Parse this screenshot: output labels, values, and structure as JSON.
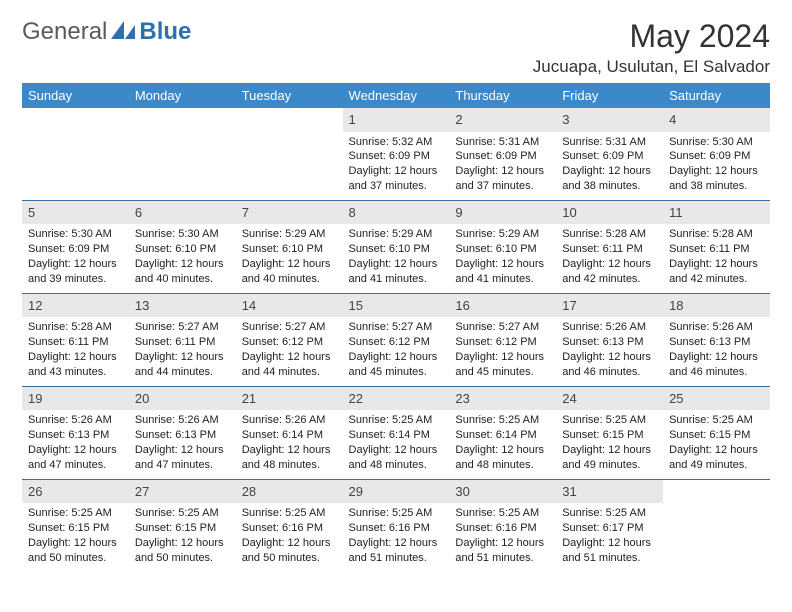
{
  "brand": {
    "part1": "General",
    "part2": "Blue"
  },
  "title": "May 2024",
  "location": "Jucuapa, Usulutan, El Salvador",
  "header_bg": "#3b89c9",
  "rule_color": "#3b6fa0",
  "daynum_bg": "#e8e8e8",
  "weekdays": [
    "Sunday",
    "Monday",
    "Tuesday",
    "Wednesday",
    "Thursday",
    "Friday",
    "Saturday"
  ],
  "weeks": [
    [
      {
        "empty": true
      },
      {
        "empty": true
      },
      {
        "empty": true
      },
      {
        "day": "1",
        "sunrise": "Sunrise: 5:32 AM",
        "sunset": "Sunset: 6:09 PM",
        "d1": "Daylight: 12 hours",
        "d2": "and 37 minutes."
      },
      {
        "day": "2",
        "sunrise": "Sunrise: 5:31 AM",
        "sunset": "Sunset: 6:09 PM",
        "d1": "Daylight: 12 hours",
        "d2": "and 37 minutes."
      },
      {
        "day": "3",
        "sunrise": "Sunrise: 5:31 AM",
        "sunset": "Sunset: 6:09 PM",
        "d1": "Daylight: 12 hours",
        "d2": "and 38 minutes."
      },
      {
        "day": "4",
        "sunrise": "Sunrise: 5:30 AM",
        "sunset": "Sunset: 6:09 PM",
        "d1": "Daylight: 12 hours",
        "d2": "and 38 minutes."
      }
    ],
    [
      {
        "day": "5",
        "sunrise": "Sunrise: 5:30 AM",
        "sunset": "Sunset: 6:09 PM",
        "d1": "Daylight: 12 hours",
        "d2": "and 39 minutes."
      },
      {
        "day": "6",
        "sunrise": "Sunrise: 5:30 AM",
        "sunset": "Sunset: 6:10 PM",
        "d1": "Daylight: 12 hours",
        "d2": "and 40 minutes."
      },
      {
        "day": "7",
        "sunrise": "Sunrise: 5:29 AM",
        "sunset": "Sunset: 6:10 PM",
        "d1": "Daylight: 12 hours",
        "d2": "and 40 minutes."
      },
      {
        "day": "8",
        "sunrise": "Sunrise: 5:29 AM",
        "sunset": "Sunset: 6:10 PM",
        "d1": "Daylight: 12 hours",
        "d2": "and 41 minutes."
      },
      {
        "day": "9",
        "sunrise": "Sunrise: 5:29 AM",
        "sunset": "Sunset: 6:10 PM",
        "d1": "Daylight: 12 hours",
        "d2": "and 41 minutes."
      },
      {
        "day": "10",
        "sunrise": "Sunrise: 5:28 AM",
        "sunset": "Sunset: 6:11 PM",
        "d1": "Daylight: 12 hours",
        "d2": "and 42 minutes."
      },
      {
        "day": "11",
        "sunrise": "Sunrise: 5:28 AM",
        "sunset": "Sunset: 6:11 PM",
        "d1": "Daylight: 12 hours",
        "d2": "and 42 minutes."
      }
    ],
    [
      {
        "day": "12",
        "sunrise": "Sunrise: 5:28 AM",
        "sunset": "Sunset: 6:11 PM",
        "d1": "Daylight: 12 hours",
        "d2": "and 43 minutes."
      },
      {
        "day": "13",
        "sunrise": "Sunrise: 5:27 AM",
        "sunset": "Sunset: 6:11 PM",
        "d1": "Daylight: 12 hours",
        "d2": "and 44 minutes."
      },
      {
        "day": "14",
        "sunrise": "Sunrise: 5:27 AM",
        "sunset": "Sunset: 6:12 PM",
        "d1": "Daylight: 12 hours",
        "d2": "and 44 minutes."
      },
      {
        "day": "15",
        "sunrise": "Sunrise: 5:27 AM",
        "sunset": "Sunset: 6:12 PM",
        "d1": "Daylight: 12 hours",
        "d2": "and 45 minutes."
      },
      {
        "day": "16",
        "sunrise": "Sunrise: 5:27 AM",
        "sunset": "Sunset: 6:12 PM",
        "d1": "Daylight: 12 hours",
        "d2": "and 45 minutes."
      },
      {
        "day": "17",
        "sunrise": "Sunrise: 5:26 AM",
        "sunset": "Sunset: 6:13 PM",
        "d1": "Daylight: 12 hours",
        "d2": "and 46 minutes."
      },
      {
        "day": "18",
        "sunrise": "Sunrise: 5:26 AM",
        "sunset": "Sunset: 6:13 PM",
        "d1": "Daylight: 12 hours",
        "d2": "and 46 minutes."
      }
    ],
    [
      {
        "day": "19",
        "sunrise": "Sunrise: 5:26 AM",
        "sunset": "Sunset: 6:13 PM",
        "d1": "Daylight: 12 hours",
        "d2": "and 47 minutes."
      },
      {
        "day": "20",
        "sunrise": "Sunrise: 5:26 AM",
        "sunset": "Sunset: 6:13 PM",
        "d1": "Daylight: 12 hours",
        "d2": "and 47 minutes."
      },
      {
        "day": "21",
        "sunrise": "Sunrise: 5:26 AM",
        "sunset": "Sunset: 6:14 PM",
        "d1": "Daylight: 12 hours",
        "d2": "and 48 minutes."
      },
      {
        "day": "22",
        "sunrise": "Sunrise: 5:25 AM",
        "sunset": "Sunset: 6:14 PM",
        "d1": "Daylight: 12 hours",
        "d2": "and 48 minutes."
      },
      {
        "day": "23",
        "sunrise": "Sunrise: 5:25 AM",
        "sunset": "Sunset: 6:14 PM",
        "d1": "Daylight: 12 hours",
        "d2": "and 48 minutes."
      },
      {
        "day": "24",
        "sunrise": "Sunrise: 5:25 AM",
        "sunset": "Sunset: 6:15 PM",
        "d1": "Daylight: 12 hours",
        "d2": "and 49 minutes."
      },
      {
        "day": "25",
        "sunrise": "Sunrise: 5:25 AM",
        "sunset": "Sunset: 6:15 PM",
        "d1": "Daylight: 12 hours",
        "d2": "and 49 minutes."
      }
    ],
    [
      {
        "day": "26",
        "sunrise": "Sunrise: 5:25 AM",
        "sunset": "Sunset: 6:15 PM",
        "d1": "Daylight: 12 hours",
        "d2": "and 50 minutes."
      },
      {
        "day": "27",
        "sunrise": "Sunrise: 5:25 AM",
        "sunset": "Sunset: 6:15 PM",
        "d1": "Daylight: 12 hours",
        "d2": "and 50 minutes."
      },
      {
        "day": "28",
        "sunrise": "Sunrise: 5:25 AM",
        "sunset": "Sunset: 6:16 PM",
        "d1": "Daylight: 12 hours",
        "d2": "and 50 minutes."
      },
      {
        "day": "29",
        "sunrise": "Sunrise: 5:25 AM",
        "sunset": "Sunset: 6:16 PM",
        "d1": "Daylight: 12 hours",
        "d2": "and 51 minutes."
      },
      {
        "day": "30",
        "sunrise": "Sunrise: 5:25 AM",
        "sunset": "Sunset: 6:16 PM",
        "d1": "Daylight: 12 hours",
        "d2": "and 51 minutes."
      },
      {
        "day": "31",
        "sunrise": "Sunrise: 5:25 AM",
        "sunset": "Sunset: 6:17 PM",
        "d1": "Daylight: 12 hours",
        "d2": "and 51 minutes."
      },
      {
        "empty": true
      }
    ]
  ]
}
